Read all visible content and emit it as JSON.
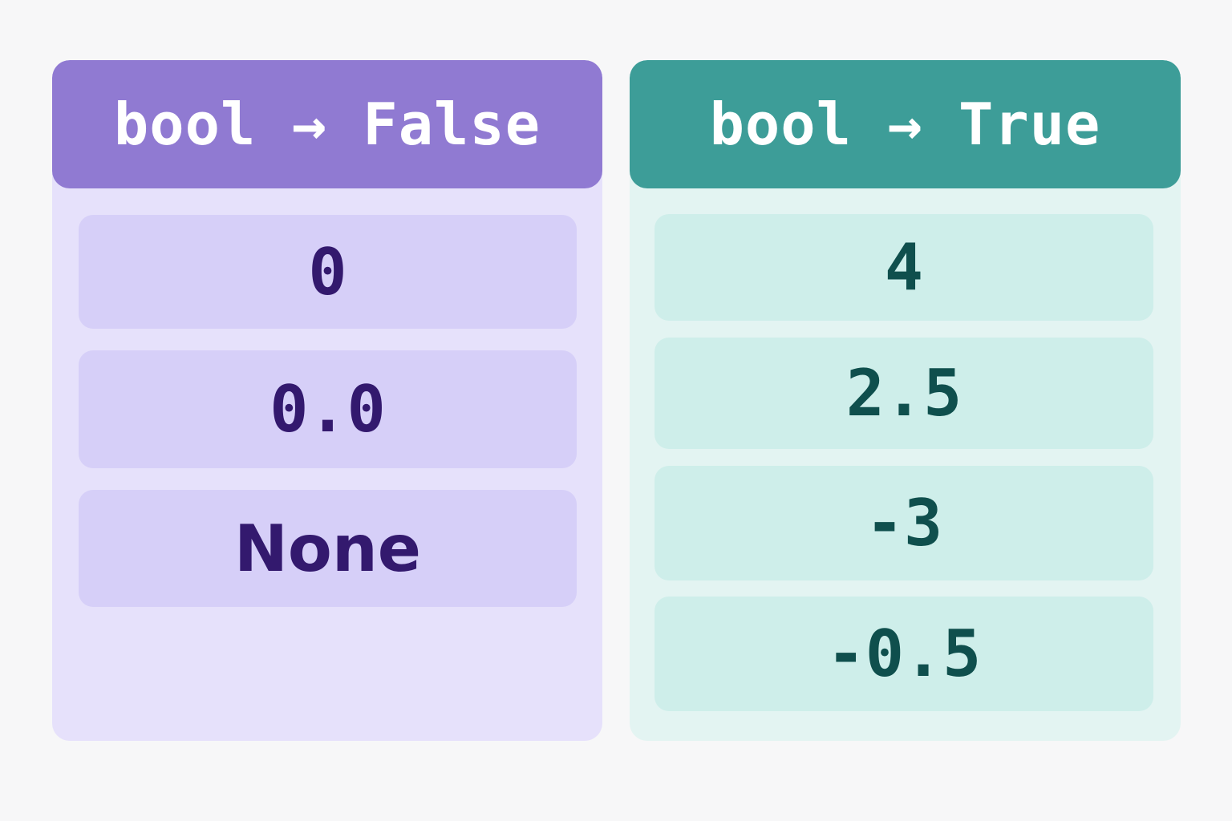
{
  "falsy": {
    "header": "bool → False",
    "items": [
      "0",
      "0.0",
      "None"
    ],
    "colors": {
      "header_bg": "#907ad2",
      "panel_bg": "#e6e1fb",
      "item_bg": "#d6cff8",
      "item_text": "#33196e"
    }
  },
  "truthy": {
    "header": "bool → True",
    "items": [
      "4",
      "2.5",
      "-3",
      "-0.5"
    ],
    "colors": {
      "header_bg": "#3d9d98",
      "panel_bg": "#e3f4f2",
      "item_bg": "#ceeeea",
      "item_text": "#0f4f4d"
    }
  }
}
